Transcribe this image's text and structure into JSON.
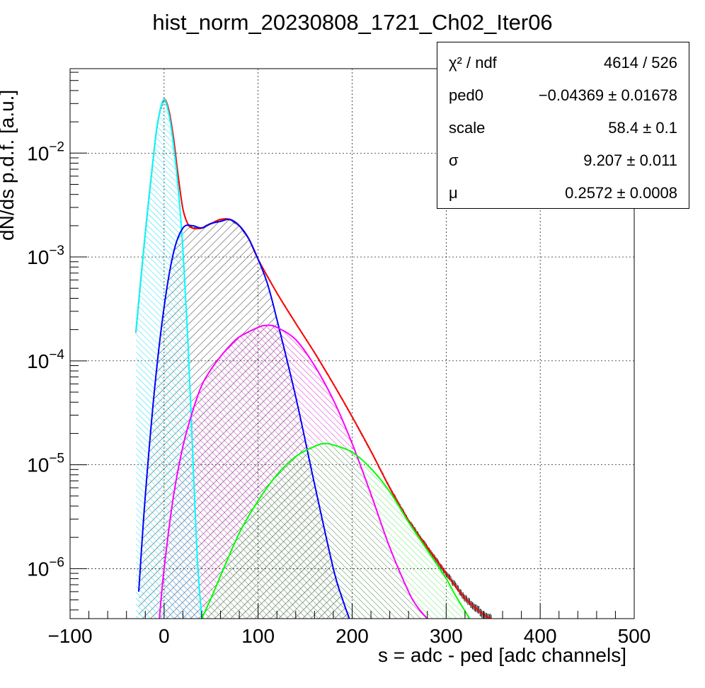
{
  "chart_data": {
    "type": "line",
    "title": "hist_norm_20230808_1721_Ch02_Iter06",
    "xlabel": "s = adc - ped [adc channels]",
    "ylabel": "dN/ds p.d.f. [a.u.]",
    "xlim": [
      -100,
      500
    ],
    "ylim": [
      3.3e-07,
      0.065
    ],
    "yscale": "log",
    "grid": true,
    "x_ticks": [
      "−100",
      "0",
      "100",
      "200",
      "300",
      "400",
      "500"
    ],
    "y_ticks": [
      {
        "value": 1e-06,
        "base": "10",
        "exp": "−6"
      },
      {
        "value": 1e-05,
        "base": "10",
        "exp": "−5"
      },
      {
        "value": 0.0001,
        "base": "10",
        "exp": "−4"
      },
      {
        "value": 0.001,
        "base": "10",
        "exp": "−3"
      },
      {
        "value": 0.01,
        "base": "10",
        "exp": "−2"
      }
    ],
    "series": [
      {
        "color": "#ff0000",
        "role": "total_fit",
        "x": [
          -30,
          -20,
          -10,
          -5,
          0,
          5,
          10,
          15,
          20,
          25,
          30,
          40,
          50,
          60,
          70,
          80,
          90,
          100,
          120,
          140,
          160,
          180,
          200,
          220,
          240,
          260,
          280,
          300,
          320,
          340,
          348
        ],
        "y": [
          0.00019,
          0.0017,
          0.012,
          0.024,
          0.033,
          0.026,
          0.014,
          0.006,
          0.0029,
          0.0021,
          0.0019,
          0.0019,
          0.0021,
          0.0023,
          0.0023,
          0.002,
          0.0015,
          0.00095,
          0.00045,
          0.00023,
          0.00012,
          6e-05,
          2.9e-05,
          1.35e-05,
          6e-06,
          2.9e-06,
          1.6e-06,
          9e-07,
          5.2e-07,
          3.6e-07,
          3.3e-07
        ]
      },
      {
        "color": "#00ffff",
        "role": "pedestal",
        "x": [
          -30,
          -20,
          -10,
          -5,
          0,
          5,
          10,
          15,
          20,
          25,
          30,
          35,
          40
        ],
        "y": [
          0.00019,
          0.0017,
          0.012,
          0.024,
          0.033,
          0.024,
          0.012,
          0.0046,
          0.0012,
          0.00018,
          1.6e-05,
          1.4e-06,
          3.3e-07
        ]
      },
      {
        "color": "#0000ff",
        "role": "1pe",
        "x": [
          -27,
          -20,
          -10,
          0,
          10,
          20,
          30,
          40,
          50,
          60,
          70,
          80,
          90,
          100,
          110,
          120,
          140,
          160,
          180,
          190,
          197
        ],
        "y": [
          6e-07,
          5e-06,
          5.5e-05,
          0.00033,
          0.0011,
          0.0019,
          0.002,
          0.0019,
          0.0021,
          0.0022,
          0.0023,
          0.002,
          0.0015,
          0.00095,
          0.00055,
          0.00025,
          4.5e-05,
          6.5e-06,
          1e-06,
          5e-07,
          3.3e-07
        ]
      },
      {
        "color": "#ff00ff",
        "role": "2pe",
        "x": [
          -5,
          0,
          10,
          20,
          30,
          40,
          50,
          60,
          70,
          80,
          100,
          110,
          120,
          140,
          160,
          180,
          200,
          220,
          240,
          260,
          270,
          280
        ],
        "y": [
          3.3e-07,
          1e-06,
          5e-06,
          1.5e-05,
          3.2e-05,
          5.8e-05,
          8.3e-05,
          0.00011,
          0.00014,
          0.00017,
          0.00021,
          0.00022,
          0.00021,
          0.00016,
          9e-05,
          4.2e-05,
          1.6e-05,
          5.2e-06,
          1.6e-06,
          6e-07,
          4.2e-07,
          3.3e-07
        ]
      },
      {
        "color": "#00ff00",
        "role": "3pe",
        "x": [
          40,
          50,
          60,
          80,
          100,
          120,
          140,
          160,
          170,
          180,
          200,
          220,
          240,
          260,
          280,
          300,
          310,
          325
        ],
        "y": [
          3.3e-07,
          5.2e-07,
          8.5e-07,
          2.2e-06,
          4.5e-06,
          8e-06,
          1.2e-05,
          1.5e-05,
          1.6e-05,
          1.55e-05,
          1.32e-05,
          9.2e-06,
          5.5e-06,
          2.8e-06,
          1.5e-06,
          8e-07,
          5.5e-07,
          3.3e-07
        ]
      }
    ]
  },
  "stats": [
    {
      "label": "χ² / ndf",
      "value": "4614 / 526"
    },
    {
      "label": "ped0",
      "value": "−0.04369 ± 0.01678"
    },
    {
      "label": "scale",
      "value": "58.4 ± 0.1"
    },
    {
      "label": "σ",
      "value": "9.207 ± 0.011"
    },
    {
      "label": "μ",
      "value": "0.2572 ± 0.0008"
    }
  ]
}
